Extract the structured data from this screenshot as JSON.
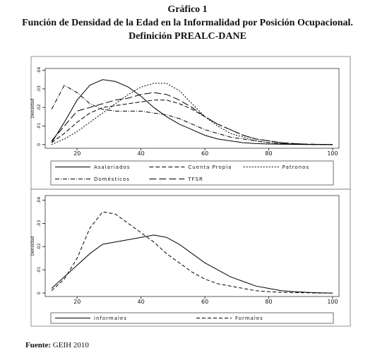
{
  "header": {
    "lines": [
      "Gráfico 1",
      "Función de Densidad de la Edad en la Informalidad por Posición Ocupacional.",
      "Definición PREALC-DANE"
    ]
  },
  "chart_data": [
    {
      "type": "line",
      "ylabel": "Densidad",
      "x": [
        12,
        16,
        20,
        24,
        28,
        32,
        36,
        40,
        44,
        48,
        52,
        56,
        60,
        64,
        68,
        72,
        76,
        80,
        84,
        88,
        92,
        96,
        100
      ],
      "xlim": [
        10,
        102
      ],
      "xticks": [
        20,
        40,
        60,
        80,
        100
      ],
      "ylim": [
        -0.002,
        0.041
      ],
      "yticks": [
        {
          "value": 0,
          "label": "0"
        },
        {
          "value": 0.01,
          "label": ".01"
        },
        {
          "value": 0.02,
          "label": ".02"
        },
        {
          "value": 0.03,
          "label": ".03"
        },
        {
          "value": 0.04,
          "label": ".04"
        }
      ],
      "series": [
        {
          "name": "Asalariados",
          "color": "#000000",
          "dash": "none",
          "values": [
            0.001,
            0.012,
            0.024,
            0.032,
            0.035,
            0.034,
            0.031,
            0.026,
            0.02,
            0.015,
            0.011,
            0.008,
            0.005,
            0.003,
            0.002,
            0.001,
            0.0005,
            0.0003,
            0.0002,
            0.0001,
            0,
            0,
            0
          ]
        },
        {
          "name": "Cuenta Propia",
          "color": "#000000",
          "dash": "6,3",
          "values": [
            0.001,
            0.006,
            0.012,
            0.017,
            0.02,
            0.021,
            0.022,
            0.023,
            0.024,
            0.024,
            0.022,
            0.019,
            0.015,
            0.011,
            0.008,
            0.005,
            0.003,
            0.002,
            0.001,
            0.0005,
            0.0002,
            0.0001,
            0
          ]
        },
        {
          "name": "Patronos",
          "color": "#000000",
          "dash": "2,2",
          "values": [
            0,
            0.003,
            0.007,
            0.012,
            0.017,
            0.022,
            0.027,
            0.031,
            0.033,
            0.033,
            0.029,
            0.022,
            0.015,
            0.01,
            0.006,
            0.004,
            0.002,
            0.001,
            0.0005,
            0.0002,
            0.0001,
            0,
            0
          ]
        },
        {
          "name": "Domésticos",
          "color": "#000000",
          "dash": "6,2,1,2",
          "values": [
            0.019,
            0.032,
            0.028,
            0.022,
            0.019,
            0.018,
            0.018,
            0.018,
            0.017,
            0.016,
            0.014,
            0.011,
            0.008,
            0.006,
            0.004,
            0.003,
            0.002,
            0.001,
            0.0005,
            0.0003,
            0.0001,
            0,
            0
          ]
        },
        {
          "name": "TFSR",
          "color": "#000000",
          "dash": "10,4",
          "values": [
            0.002,
            0.01,
            0.018,
            0.02,
            0.022,
            0.024,
            0.025,
            0.027,
            0.028,
            0.027,
            0.024,
            0.02,
            0.015,
            0.011,
            0.008,
            0.005,
            0.003,
            0.002,
            0.001,
            0.0005,
            0.0002,
            0.0001,
            0
          ]
        }
      ]
    },
    {
      "type": "line",
      "ylabel": "Densidad",
      "x": [
        12,
        16,
        20,
        24,
        28,
        32,
        36,
        40,
        44,
        48,
        52,
        56,
        60,
        64,
        68,
        72,
        76,
        80,
        84,
        88,
        92,
        96,
        100
      ],
      "xlim": [
        10,
        102
      ],
      "xticks": [
        20,
        40,
        60,
        80,
        100
      ],
      "ylim": [
        -0.0015,
        0.042
      ],
      "yticks": [
        {
          "value": 0,
          "label": "0"
        },
        {
          "value": 0.01,
          "label": ".01"
        },
        {
          "value": 0.02,
          "label": ".02"
        },
        {
          "value": 0.03,
          "label": ".03"
        },
        {
          "value": 0.04,
          "label": ".04"
        }
      ],
      "series": [
        {
          "name": "informales",
          "color": "#000000",
          "dash": "none",
          "values": [
            0.002,
            0.007,
            0.012,
            0.017,
            0.021,
            0.022,
            0.023,
            0.024,
            0.025,
            0.024,
            0.021,
            0.017,
            0.013,
            0.01,
            0.007,
            0.005,
            0.003,
            0.002,
            0.001,
            0.0006,
            0.0003,
            0.0001,
            0
          ]
        },
        {
          "name": "Formales",
          "color": "#000000",
          "dash": "5,3",
          "values": [
            0.001,
            0.006,
            0.015,
            0.028,
            0.035,
            0.034,
            0.03,
            0.026,
            0.022,
            0.017,
            0.013,
            0.009,
            0.006,
            0.004,
            0.003,
            0.002,
            0.001,
            0.0006,
            0.0003,
            0.0002,
            0.0001,
            0,
            0
          ]
        }
      ]
    }
  ],
  "source": {
    "label": "Fuente:",
    "text": "GEIH 2010"
  }
}
